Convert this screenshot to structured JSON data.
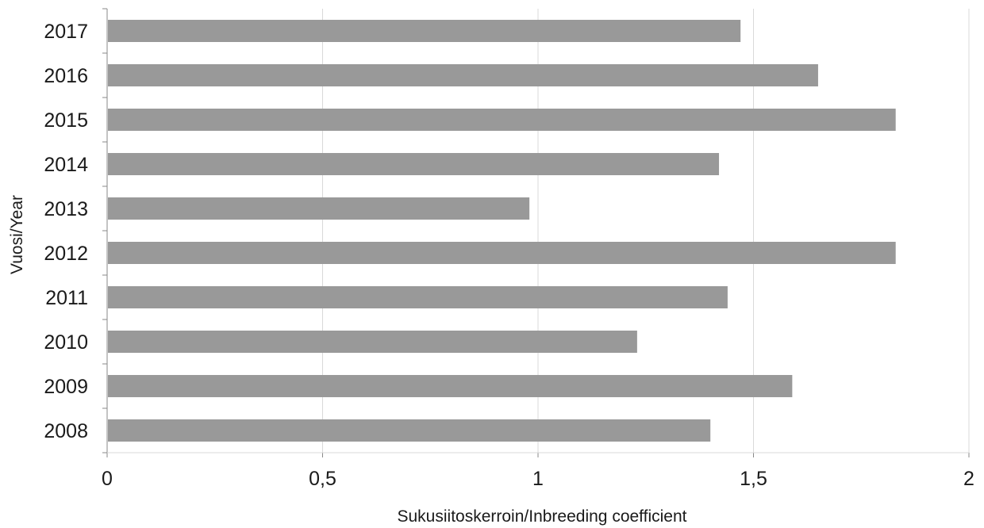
{
  "chart_data": {
    "type": "bar",
    "orientation": "horizontal",
    "categories": [
      "2017",
      "2016",
      "2015",
      "2014",
      "2013",
      "2012",
      "2011",
      "2010",
      "2009",
      "2008"
    ],
    "values": [
      1.47,
      1.65,
      1.83,
      1.42,
      0.98,
      1.83,
      1.44,
      1.23,
      1.59,
      1.4
    ],
    "xlabel": "Sukusiitoskerroin/Inbreeding coefficient",
    "ylabel": "Vuosi/Year",
    "xlim": [
      0,
      2
    ],
    "xticks": [
      {
        "value": 0,
        "label": "0"
      },
      {
        "value": 0.5,
        "label": "0,5"
      },
      {
        "value": 1,
        "label": "1"
      },
      {
        "value": 1.5,
        "label": "1,5"
      },
      {
        "value": 2,
        "label": "2"
      }
    ],
    "grid": "vertical",
    "legend": "none",
    "bar_color": "#999999",
    "grid_color": "#d9d9d9"
  }
}
